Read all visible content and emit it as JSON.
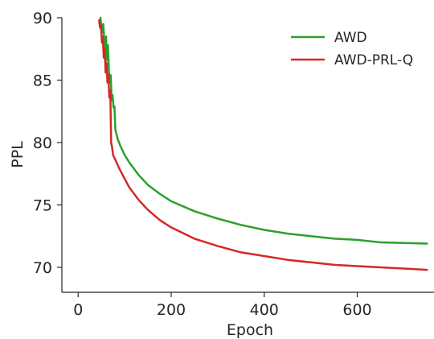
{
  "chart_data": {
    "type": "line",
    "xlabel": "Epoch",
    "ylabel": "PPL",
    "xlim": [
      -35,
      765
    ],
    "ylim": [
      68,
      90
    ],
    "x_ticks": [
      0,
      200,
      400,
      600
    ],
    "y_ticks": [
      70,
      75,
      80,
      85,
      90
    ],
    "grid": false,
    "legend_position": "top-right",
    "series": [
      {
        "name": "AWD",
        "color": "#2ca02c",
        "x": [
          48,
          50,
          52,
          54,
          56,
          58,
          60,
          62,
          64,
          66,
          68,
          70,
          72,
          74,
          76,
          78,
          80,
          85,
          90,
          100,
          110,
          120,
          130,
          140,
          150,
          175,
          200,
          250,
          300,
          350,
          400,
          450,
          500,
          550,
          600,
          650,
          700,
          750
        ],
        "y": [
          90.0,
          89.2,
          88.8,
          89.5,
          88.2,
          87.2,
          88.5,
          86.6,
          87.8,
          85.8,
          84.8,
          85.4,
          83.4,
          83.8,
          82.8,
          82.9,
          81.0,
          80.3,
          79.8,
          79.0,
          78.4,
          77.9,
          77.4,
          77.0,
          76.6,
          75.9,
          75.3,
          74.5,
          73.9,
          73.4,
          73.0,
          72.7,
          72.5,
          72.3,
          72.2,
          72.0,
          71.95,
          71.9
        ]
      },
      {
        "name": "AWD-PRL-Q",
        "color": "#d62728",
        "x": [
          45,
          47,
          49,
          51,
          53,
          55,
          57,
          59,
          61,
          63,
          65,
          67,
          69,
          71,
          73,
          75,
          80,
          85,
          90,
          100,
          110,
          120,
          130,
          140,
          150,
          175,
          200,
          250,
          300,
          350,
          400,
          450,
          500,
          550,
          600,
          650,
          700,
          750
        ],
        "y": [
          89.8,
          89.2,
          89.4,
          88.0,
          88.5,
          86.8,
          87.5,
          85.6,
          86.4,
          84.8,
          85.4,
          83.6,
          84.2,
          80.0,
          79.6,
          79.0,
          78.6,
          78.2,
          77.8,
          77.1,
          76.4,
          75.9,
          75.4,
          75.0,
          74.6,
          73.8,
          73.2,
          72.3,
          71.7,
          71.2,
          70.9,
          70.6,
          70.4,
          70.2,
          70.1,
          70.0,
          69.9,
          69.8
        ]
      }
    ]
  }
}
